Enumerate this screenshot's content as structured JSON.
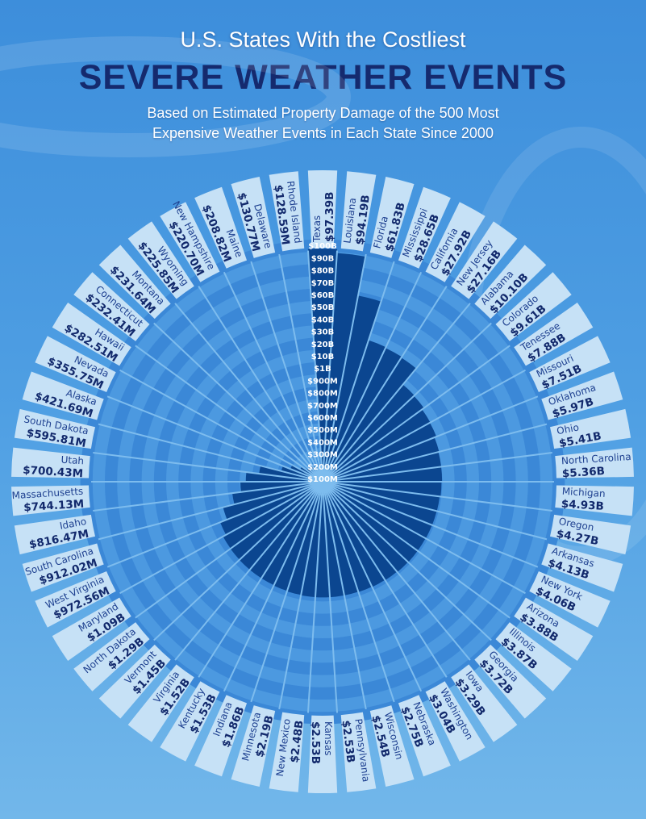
{
  "header": {
    "title_line1": "U.S. States With the Costliest",
    "title_line2": "SEVERE WEATHER EVENTS",
    "subtitle_line1": "Based on Estimated Property Damage of the 500 Most",
    "subtitle_line2": "Expensive Weather Events in Each State Since 2000"
  },
  "colors": {
    "bar": "#0b4690",
    "band_a": "#3b88d7",
    "band_b": "#4c99e0",
    "label_box": "#c6e1f6",
    "ray": "#7dbcee",
    "name_text": "#1d3f8f",
    "value_text": "#12296c"
  },
  "chart_data": {
    "type": "radial-bar",
    "title": "U.S. States With the Costliest Severe Weather Events",
    "subtitle": "Based on Estimated Property Damage of the 500 Most Expensive Weather Events in Each State Since 2000",
    "unit": "USD billions",
    "tick_labels": [
      "$100M",
      "$200M",
      "$300M",
      "$400M",
      "$500M",
      "$600M",
      "$700M",
      "$800M",
      "$900M",
      "$1B",
      "$10B",
      "$20B",
      "$30B",
      "$40B",
      "$50B",
      "$60B",
      "$70B",
      "$80B",
      "$90B",
      "$100B"
    ],
    "tick_values": [
      0.1,
      0.2,
      0.3,
      0.4,
      0.5,
      0.6,
      0.7,
      0.8,
      0.9,
      1,
      10,
      20,
      30,
      40,
      50,
      60,
      70,
      80,
      90,
      100
    ],
    "states": [
      {
        "name": "Texas",
        "label": "$97.39B",
        "value": 97.39
      },
      {
        "name": "Louisiana",
        "label": "$94.19B",
        "value": 94.19
      },
      {
        "name": "Florida",
        "label": "$61.83B",
        "value": 61.83
      },
      {
        "name": "Mississippi",
        "label": "$28.65B",
        "value": 28.65
      },
      {
        "name": "California",
        "label": "$27.92B",
        "value": 27.92
      },
      {
        "name": "New Jersey",
        "label": "$27.16B",
        "value": 27.16
      },
      {
        "name": "Alabama",
        "label": "$10.10B",
        "value": 10.1
      },
      {
        "name": "Colorado",
        "label": "$9.61B",
        "value": 9.61
      },
      {
        "name": "Tenessee",
        "label": "$7.88B",
        "value": 7.88
      },
      {
        "name": "Missouri",
        "label": "$7.51B",
        "value": 7.51
      },
      {
        "name": "Oklahoma",
        "label": "$5.97B",
        "value": 5.97
      },
      {
        "name": "Ohio",
        "label": "$5.41B",
        "value": 5.41
      },
      {
        "name": "North Carolina",
        "label": "$5.36B",
        "value": 5.36
      },
      {
        "name": "Michigan",
        "label": "$4.93B",
        "value": 4.93
      },
      {
        "name": "Oregon",
        "label": "$4.27B",
        "value": 4.27
      },
      {
        "name": "Arkansas",
        "label": "$4.13B",
        "value": 4.13
      },
      {
        "name": "New York",
        "label": "$4.06B",
        "value": 4.06
      },
      {
        "name": "Arizona",
        "label": "$3.88B",
        "value": 3.88
      },
      {
        "name": "Illinois",
        "label": "$3.87B",
        "value": 3.87
      },
      {
        "name": "Georgia",
        "label": "$3.72B",
        "value": 3.72
      },
      {
        "name": "Iowa",
        "label": "$3.29B",
        "value": 3.29
      },
      {
        "name": "Washington",
        "label": "$3.04B",
        "value": 3.04
      },
      {
        "name": "Nebraska",
        "label": "$2.75B",
        "value": 2.75
      },
      {
        "name": "Wisconsin",
        "label": "$2.54B",
        "value": 2.54
      },
      {
        "name": "Pennsylvania",
        "label": "$2.53B",
        "value": 2.53
      },
      {
        "name": "Kansas",
        "label": "$2.53B",
        "value": 2.53
      },
      {
        "name": "New Mexico",
        "label": "$2.48B",
        "value": 2.48
      },
      {
        "name": "Minnesota",
        "label": "$2.19B",
        "value": 2.19
      },
      {
        "name": "Indiana",
        "label": "$1.86B",
        "value": 1.86
      },
      {
        "name": "Kentucky",
        "label": "$1.53B",
        "value": 1.53
      },
      {
        "name": "Virginia",
        "label": "$1.52B",
        "value": 1.52
      },
      {
        "name": "Vermont",
        "label": "$1.45B",
        "value": 1.45
      },
      {
        "name": "North Dakota",
        "label": "$1.29B",
        "value": 1.29
      },
      {
        "name": "Maryland",
        "label": "$1.09B",
        "value": 1.09
      },
      {
        "name": "West Virginia",
        "label": "$972.56M",
        "value": 0.97256
      },
      {
        "name": "South Carolina",
        "label": "$912.02M",
        "value": 0.91202
      },
      {
        "name": "Idaho",
        "label": "$816.47M",
        "value": 0.81647
      },
      {
        "name": "Massachusetts",
        "label": "$744.13M",
        "value": 0.74413
      },
      {
        "name": "Utah",
        "label": "$700.43M",
        "value": 0.70043
      },
      {
        "name": "South Dakota",
        "label": "$595.81M",
        "value": 0.59581
      },
      {
        "name": "Alaska",
        "label": "$421.69M",
        "value": 0.42169
      },
      {
        "name": "Nevada",
        "label": "$355.75M",
        "value": 0.35575
      },
      {
        "name": "Hawaii",
        "label": "$282.51M",
        "value": 0.28251
      },
      {
        "name": "Connecticut",
        "label": "$232.41M",
        "value": 0.23241
      },
      {
        "name": "Montana",
        "label": "$231.64M",
        "value": 0.23164
      },
      {
        "name": "Wyoming",
        "label": "$225.85M",
        "value": 0.22585
      },
      {
        "name": "New Hampshire",
        "label": "$220.70M",
        "value": 0.2207
      },
      {
        "name": "Maine",
        "label": "$208.82M",
        "value": 0.20882
      },
      {
        "name": "Delaware",
        "label": "$130.77M",
        "value": 0.13077
      },
      {
        "name": "Rhode Island",
        "label": "$128.59M",
        "value": 0.12859
      }
    ]
  }
}
